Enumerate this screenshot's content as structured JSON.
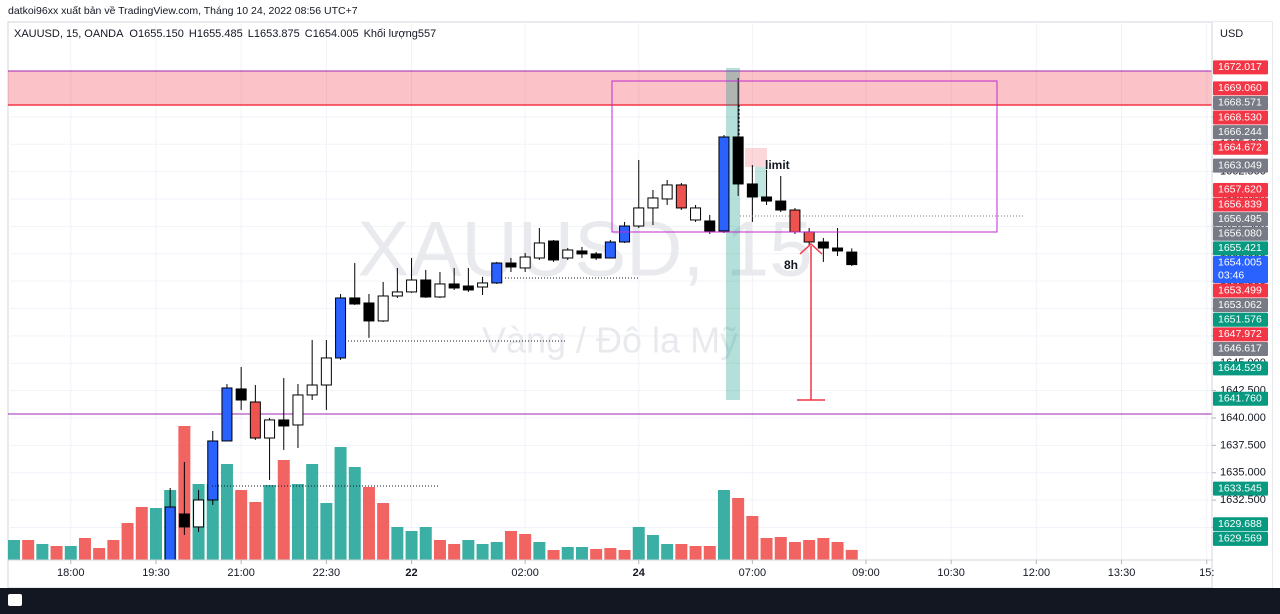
{
  "header": {
    "publisher": "datkoi96xx xuất bản về TradingView.com, Tháng 10 24, 2022 08:56 UTC+7",
    "brand": "TradingView"
  },
  "chart_data": {
    "type": "candlestick",
    "legend": {
      "symbol": "XAUUSD, 15, OANDA",
      "fields": [
        {
          "key": "O",
          "value": "1655.150"
        },
        {
          "key": "H",
          "value": "1655.485"
        },
        {
          "key": "L",
          "value": "1653.875"
        },
        {
          "key": "C",
          "value": "1654.005"
        },
        {
          "key": "Khối lượng",
          "value": "557"
        }
      ]
    },
    "watermark": {
      "symbol": "XAUUSD, 15",
      "description": "Vàng / Đô la Mỹ"
    },
    "annotations": {
      "order": "limit",
      "duration": "8h"
    },
    "currency": "USD",
    "grid": true,
    "xlim": [
      -0.42,
      84.37
    ],
    "xticks": [
      {
        "value": 4,
        "label": "18:00"
      },
      {
        "value": 10,
        "label": "19:30"
      },
      {
        "value": 16,
        "label": "21:00"
      },
      {
        "value": 22,
        "label": "22:30"
      },
      {
        "value": 28,
        "label": "22"
      },
      {
        "value": 36,
        "label": "02:00"
      },
      {
        "value": 44,
        "label": "24"
      },
      {
        "value": 52,
        "label": "07:00"
      },
      {
        "value": 60,
        "label": "09:00"
      },
      {
        "value": 66,
        "label": "10:30"
      },
      {
        "value": 72,
        "label": "12:00"
      },
      {
        "value": 78,
        "label": "13:30"
      },
      {
        "value": 84,
        "label": "15:"
      }
    ],
    "ylim": [
      1627.03,
      1676.16
    ],
    "yticks": [
      {
        "value": 1630,
        "label": "1630.000"
      },
      {
        "value": 1632.5,
        "label": "1632.500"
      },
      {
        "value": 1635,
        "label": "1635.000"
      },
      {
        "value": 1637.5,
        "label": "1637.500"
      },
      {
        "value": 1640,
        "label": "1640.000"
      },
      {
        "value": 1642.5,
        "label": "1642.500"
      },
      {
        "value": 1645,
        "label": "1645.000"
      },
      {
        "value": 1647.5,
        "label": "1647.500"
      },
      {
        "value": 1650,
        "label": "1650.000"
      },
      {
        "value": 1652.5,
        "label": "1652.500"
      },
      {
        "value": 1655,
        "label": "1655.000"
      },
      {
        "value": 1657.5,
        "label": "1657.500"
      },
      {
        "value": 1660,
        "label": "1660.000"
      },
      {
        "value": 1662.5,
        "label": "1662.500"
      },
      {
        "value": 1665,
        "label": "1665.000"
      },
      {
        "value": 1667.5,
        "label": "1667.500"
      }
    ],
    "open": [
      null,
      null,
      null,
      null,
      null,
      null,
      null,
      null,
      null,
      null,
      null,
      1626.58,
      1631.23,
      1630.05,
      1632.51,
      1637.9,
      1642.65,
      1641.46,
      1638.17,
      1639.82,
      1639.36,
      1642.1,
      1643.01,
      1645.48,
      1650.96,
      1650.5,
      1648.86,
      1651.14,
      1651.51,
      1652.6,
      1651.05,
      1652.24,
      1652.05,
      1651.96,
      1652.33,
      1654.15,
      1653.7,
      1654.61,
      1656.16,
      1654.61,
      1655.25,
      1654.98,
      1654.61,
      1656.07,
      1657.53,
      1659.18,
      1660.0,
      1661.28,
      1658.08,
      1657.99,
      1657.08,
      1665.66,
      1661.37,
      1660.18,
      1659.81,
      1658.99,
      1656.99,
      1656.07,
      1655.52,
      1655.15
    ],
    "high": [
      null,
      null,
      null,
      null,
      null,
      null,
      null,
      null,
      null,
      null,
      null,
      1633.61,
      1635.98,
      1633.43,
      1638.81,
      1643.1,
      1644.66,
      1643.01,
      1640.0,
      1643.65,
      1643.1,
      1647.12,
      1647.12,
      1651.32,
      1654.15,
      1651.32,
      1652.42,
      1653.7,
      1654.61,
      1653.52,
      1653.33,
      1653.7,
      1653.7,
      1652.88,
      1654.25,
      1654.61,
      1655.07,
      1657.35,
      1656.25,
      1655.52,
      1655.62,
      1655.16,
      1656.25,
      1657.9,
      1663.56,
      1660.82,
      1661.73,
      1661.46,
      1659.45,
      1658.54,
      1665.84,
      1671.05,
      1663.1,
      1662.65,
      1662.1,
      1659.18,
      1657.35,
      1656.44,
      1657.35,
      1655.485
    ],
    "low": [
      null,
      null,
      null,
      null,
      null,
      null,
      null,
      null,
      null,
      null,
      null,
      1626.58,
      1629.32,
      1629.59,
      1632.06,
      1637.9,
      1640.73,
      1637.99,
      1634.34,
      1637.08,
      1637.26,
      1641.64,
      1640.73,
      1645.3,
      1650.32,
      1647.31,
      1648.77,
      1650.96,
      1651.42,
      1650.96,
      1650.96,
      1651.69,
      1651.51,
      1651.23,
      1652.24,
      1653.33,
      1653.33,
      1654.43,
      1654.25,
      1654.43,
      1654.61,
      1654.43,
      1654.61,
      1655.98,
      1657.35,
      1657.62,
      1659.45,
      1659.0,
      1657.9,
      1656.8,
      1656.89,
      1660.27,
      1657.9,
      1659.45,
      1658.81,
      1656.8,
      1655.8,
      1654.25,
      1654.79,
      1653.875
    ],
    "close": [
      null,
      null,
      null,
      null,
      null,
      null,
      null,
      null,
      null,
      null,
      null,
      1631.87,
      1630.05,
      1632.51,
      1637.9,
      1642.74,
      1641.64,
      1638.17,
      1639.82,
      1639.27,
      1642.1,
      1643.01,
      1645.48,
      1650.96,
      1650.41,
      1648.86,
      1651.14,
      1651.51,
      1652.6,
      1651.05,
      1652.24,
      1651.87,
      1651.69,
      1652.33,
      1654.15,
      1653.79,
      1654.7,
      1655.98,
      1654.43,
      1655.34,
      1654.98,
      1654.61,
      1656.07,
      1657.53,
      1659.18,
      1660.09,
      1661.28,
      1659.18,
      1659.18,
      1657.08,
      1665.66,
      1661.37,
      1660.18,
      1659.81,
      1658.99,
      1656.99,
      1656.07,
      1655.52,
      1655.25,
      1654.005
    ],
    "colors": [
      null,
      null,
      null,
      null,
      null,
      null,
      null,
      null,
      null,
      null,
      null,
      "#2962ff",
      "#000000",
      "#ffffff",
      "#2962ff",
      "#2962ff",
      "#000000",
      "#ef5350",
      "#ffffff",
      "#000000",
      "#ffffff",
      "#ffffff",
      "#ffffff",
      "#2962ff",
      "#000000",
      "#000000",
      "#ffffff",
      "#ffffff",
      "#ffffff",
      "#000000",
      "#ffffff",
      "#000000",
      "#000000",
      "#ffffff",
      "#2962ff",
      "#000000",
      "#ffffff",
      "#ffffff",
      "#000000",
      "#ffffff",
      "#000000",
      "#000000",
      "#2962ff",
      "#2962ff",
      "#ffffff",
      "#ffffff",
      "#ffffff",
      "#ef5350",
      "#ffffff",
      "#000000",
      "#2962ff",
      "#000000",
      "#000000",
      "#000000",
      "#000000",
      "#ef5350",
      "#ef5350",
      "#000000",
      "#000000",
      "#000000"
    ],
    "volume": [
      1100,
      1100,
      880,
      770,
      770,
      1210,
      660,
      1100,
      2035,
      2915,
      2860,
      3850,
      7370,
      4180,
      4180,
      5280,
      3850,
      3190,
      4125,
      5500,
      4180,
      5280,
      3135,
      6215,
      5115,
      4015,
      3135,
      1815,
      1595,
      1815,
      1100,
      880,
      1100,
      880,
      990,
      1595,
      1430,
      990,
      550,
      715,
      715,
      605,
      660,
      550,
      1815,
      1375,
      880,
      880,
      770,
      770,
      3850,
      3410,
      2420,
      1210,
      1265,
      990,
      1100,
      1210,
      990,
      557
    ],
    "volume_colors": [
      "#26a69a",
      "#ef5350",
      "#26a69a",
      "#ef5350",
      "#26a69a",
      "#ef5350",
      "#ef5350",
      "#ef5350",
      "#ef5350",
      "#ef5350",
      "#26a69a",
      "#26a69a",
      "#ef5350",
      "#26a69a",
      "#26a69a",
      "#26a69a",
      "#ef5350",
      "#ef5350",
      "#26a69a",
      "#ef5350",
      "#26a69a",
      "#26a69a",
      "#26a69a",
      "#26a69a",
      "#26a69a",
      "#ef5350",
      "#ef5350",
      "#26a69a",
      "#26a69a",
      "#26a69a",
      "#ef5350",
      "#ef5350",
      "#26a69a",
      "#26a69a",
      "#26a69a",
      "#ef5350",
      "#ef5350",
      "#26a69a",
      "#ef5350",
      "#26a69a",
      "#26a69a",
      "#ef5350",
      "#ef5350",
      "#ef5350",
      "#26a69a",
      "#26a69a",
      "#26a69a",
      "#ef5350",
      "#ef5350",
      "#ef5350",
      "#26a69a",
      "#ef5350",
      "#ef5350",
      "#ef5350",
      "#ef5350",
      "#ef5350",
      "#ef5350",
      "#ef5350",
      "#ef5350",
      "#ef5350"
    ],
    "price_labels": [
      {
        "value": 1672.017,
        "label": "1672.017",
        "color": "#f23645"
      },
      {
        "value": 1669.06,
        "label": "1669.060",
        "color": "#f23645"
      },
      {
        "value": 1668.571,
        "label": "1668.571",
        "color": "#787b86"
      },
      {
        "value": 1668.53,
        "label": "1668.530",
        "color": "#f23645"
      },
      {
        "value": 1666.244,
        "label": "1666.244",
        "color": "#787b86"
      },
      {
        "value": 1664.672,
        "label": "1664.672",
        "color": "#f23645"
      },
      {
        "value": 1663.049,
        "label": "1663.049",
        "color": "#787b86"
      },
      {
        "value": 1657.62,
        "label": "1657.620",
        "color": "#f23645"
      },
      {
        "value": 1656.839,
        "label": "1656.839",
        "color": "#f23645"
      },
      {
        "value": 1656.495,
        "label": "1656.495",
        "color": "#787b86"
      },
      {
        "value": 1656.08,
        "label": "1656.080",
        "color": "#787b86"
      },
      {
        "value": 1655.421,
        "label": "1655.421",
        "color": "#089981"
      },
      {
        "value": 1654.005,
        "label": "1654.005",
        "color": "#2962ff",
        "countdown": "03:46"
      },
      {
        "value": 1653.499,
        "label": "1653.499",
        "color": "#f23645"
      },
      {
        "value": 1653.062,
        "label": "1653.062",
        "color": "#787b86"
      },
      {
        "value": 1651.576,
        "label": "1651.576",
        "color": "#089981"
      },
      {
        "value": 1647.972,
        "label": "1647.972",
        "color": "#f23645"
      },
      {
        "value": 1646.617,
        "label": "1646.617",
        "color": "#787b86"
      },
      {
        "value": 1644.529,
        "label": "1644.529",
        "color": "#089981"
      },
      {
        "value": 1641.76,
        "label": "1641.760",
        "color": "#089981"
      },
      {
        "value": 1633.545,
        "label": "1633.545",
        "color": "#089981"
      },
      {
        "value": 1629.688,
        "label": "1629.688",
        "color": "#089981"
      },
      {
        "value": 1629.569,
        "label": "1629.569",
        "color": "#089981"
      }
    ]
  }
}
